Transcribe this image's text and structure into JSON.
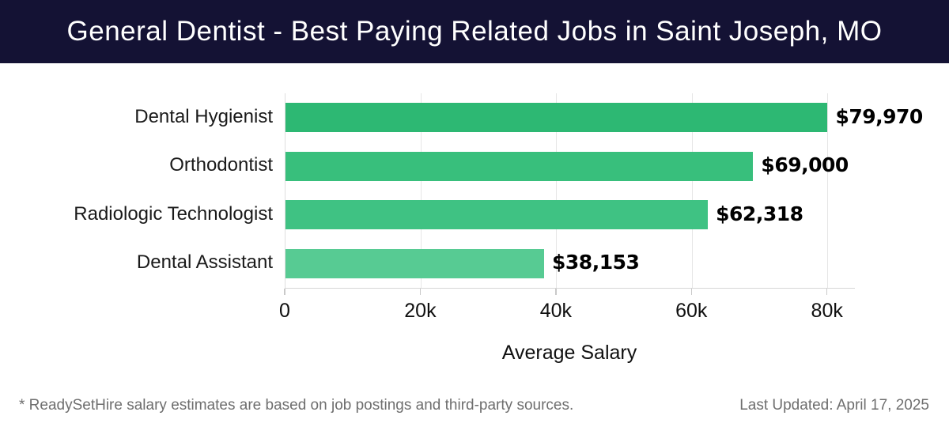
{
  "header": {
    "title": "General Dentist - Best Paying Related Jobs in Saint Joseph, MO",
    "bg_color": "#141234",
    "text_color": "#ffffff"
  },
  "chart_data": {
    "type": "bar",
    "orientation": "horizontal",
    "title": "General Dentist - Best Paying Related Jobs in Saint Joseph, MO",
    "categories": [
      "Dental Hygienist",
      "Orthodontist",
      "Radiologic Technologist",
      "Dental Assistant"
    ],
    "values": [
      79970,
      69000,
      62318,
      38153
    ],
    "value_labels": [
      "$79,970",
      "$69,000",
      "$62,318",
      "$38,153"
    ],
    "bar_colors": [
      "#2db873",
      "#38bf7c",
      "#3fc283",
      "#57cb93"
    ],
    "xlabel": "Average Salary",
    "ylabel": "",
    "xlim": [
      0,
      84000
    ],
    "xticks": [
      0,
      20000,
      40000,
      60000,
      80000
    ],
    "xtick_labels": [
      "0",
      "20k",
      "40k",
      "60k",
      "80k"
    ],
    "grid": "vertical",
    "gridline_color": "#e6e6e6",
    "legend": "none"
  },
  "footer": {
    "disclaimer": "* ReadySetHire salary estimates are based on job postings and third-party sources.",
    "last_updated": "Last Updated: April 17, 2025"
  }
}
